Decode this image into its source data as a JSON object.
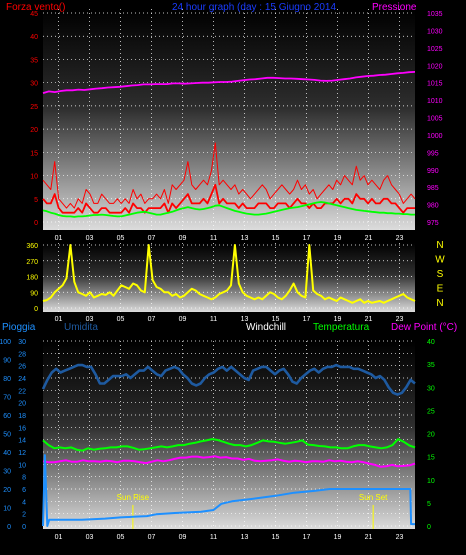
{
  "colors": {
    "wind": "#ff0000",
    "gust": "#ff0000",
    "avg_wind": "#00ff00",
    "pressure": "#ff00ff",
    "direction": "#ffff00",
    "humidity": "#1e5aa0",
    "rain": "#1e90ff",
    "temperature": "#00ff00",
    "dew_point": "#ff00ff",
    "sun": "#ffff00",
    "axis_text": "#1e90ff",
    "grid": "#ffffff"
  },
  "chart_data": [
    {
      "type": "line",
      "title": "24 hour graph (day : 15 Giugno 2014",
      "y_left_label": "Forza vento()",
      "y_right_label": "Pressione",
      "x_ticks": [
        "01",
        "03",
        "05",
        "07",
        "09",
        "11",
        "13",
        "15",
        "17",
        "19",
        "21",
        "23"
      ],
      "x_range": [
        0,
        24
      ],
      "y_left_range": [
        0,
        45
      ],
      "y_left_ticks": [
        0,
        5,
        10,
        15,
        20,
        25,
        30,
        35,
        40,
        45
      ],
      "y_right_range": [
        975,
        1035
      ],
      "y_right_ticks": [
        975,
        980,
        985,
        990,
        995,
        1000,
        1005,
        1010,
        1015,
        1020,
        1025,
        1030,
        1035
      ],
      "grid": true,
      "series": [
        {
          "key": "gust",
          "axis": "left",
          "values": [
            9,
            8,
            7,
            13,
            5,
            4,
            3,
            4,
            3,
            5,
            4,
            7,
            6,
            4,
            4,
            6,
            5,
            4,
            4,
            5,
            4,
            5,
            4,
            7,
            5,
            6,
            4,
            5,
            5,
            6,
            5,
            7,
            4,
            8,
            7,
            8,
            9,
            13,
            8,
            7,
            8,
            9,
            8,
            11,
            17,
            8,
            9,
            8,
            7,
            8,
            6,
            7,
            6,
            5,
            6,
            7,
            8,
            7,
            5,
            6,
            7,
            8,
            7,
            6,
            7,
            9,
            7,
            8,
            6,
            7,
            5,
            6,
            7,
            8,
            7,
            9,
            8,
            10,
            9,
            8,
            12,
            9,
            10,
            8,
            9,
            8,
            7,
            9,
            10,
            8,
            7,
            6,
            4,
            5,
            6,
            5
          ]
        },
        {
          "key": "wind",
          "axis": "left",
          "values": [
            5,
            4,
            4,
            6,
            3,
            2,
            2,
            2,
            2,
            3,
            2,
            4,
            3,
            2,
            2,
            3,
            3,
            2,
            2,
            2,
            2,
            3,
            2,
            4,
            3,
            3,
            2,
            3,
            3,
            3,
            3,
            4,
            2,
            4,
            3,
            4,
            5,
            6,
            4,
            4,
            4,
            5,
            4,
            6,
            8,
            4,
            5,
            4,
            4,
            4,
            3,
            4,
            3,
            3,
            3,
            4,
            4,
            4,
            3,
            3,
            4,
            4,
            4,
            3,
            4,
            5,
            4,
            4,
            3,
            4,
            3,
            3,
            4,
            4,
            4,
            5,
            4,
            5,
            5,
            4,
            6,
            5,
            5,
            4,
            5,
            4,
            4,
            5,
            5,
            4,
            4,
            3,
            2,
            3,
            3,
            3
          ]
        },
        {
          "key": "avg_wind",
          "axis": "left",
          "values": [
            2.5,
            2.3,
            2.0,
            1.8,
            1.5,
            1.3,
            1.2,
            1.2,
            1.1,
            1.2,
            1.2,
            1.3,
            1.4,
            1.5,
            1.5,
            1.6,
            1.5,
            1.4,
            1.3,
            1.2,
            1.2,
            1.4,
            1.6,
            1.8,
            2.0,
            2.1,
            2.2,
            2.0,
            1.8,
            1.6,
            1.6,
            1.8,
            2.0,
            2.2,
            2.5,
            2.8,
            3.0,
            3.2,
            3.0,
            2.8,
            2.7,
            2.8,
            3.0,
            3.2,
            3.5,
            3.6,
            3.3,
            3.0,
            2.7,
            2.4,
            2.2,
            2.0,
            1.8,
            1.7,
            1.6,
            1.6,
            1.7,
            1.8,
            2.0,
            2.2,
            2.4,
            2.6,
            2.8,
            3.0,
            3.1,
            3.2,
            3.4,
            3.6,
            3.8,
            4.0,
            4.2,
            4.3,
            4.2,
            4.0,
            3.8,
            3.6,
            3.4,
            3.2,
            3.0,
            2.8,
            2.6,
            2.5,
            2.4,
            2.3,
            2.2,
            2.1,
            2.0,
            2.0,
            1.9,
            1.9,
            1.8,
            1.8,
            1.7,
            1.7,
            1.6,
            1.6
          ]
        },
        {
          "key": "pressure",
          "axis": "right",
          "values": [
            1012.0,
            1012.5,
            1012.3,
            1012.6,
            1012.8,
            1012.8,
            1013.0,
            1012.9,
            1013.1,
            1013.3,
            1013.4,
            1013.6,
            1013.7,
            1013.8,
            1014.0,
            1014.2,
            1014.3,
            1014.5,
            1014.5,
            1014.6,
            1014.6,
            1014.6,
            1014.8,
            1014.8,
            1014.7,
            1014.8,
            1014.9,
            1015.0,
            1015.0,
            1015.1,
            1015.2,
            1015.2,
            1015.3,
            1015.5,
            1015.7,
            1015.9,
            1016.0,
            1016.2,
            1016.4,
            1016.4,
            1016.3,
            1016.2,
            1016.2,
            1016.1,
            1016.0,
            1015.9,
            1015.8,
            1015.6,
            1015.5,
            1015.6,
            1015.8,
            1016.0,
            1016.2,
            1016.5,
            1016.7,
            1016.9,
            1017.0,
            1017.2,
            1017.3,
            1017.5,
            1017.7,
            1017.8,
            1018.0,
            1018.1
          ]
        }
      ]
    },
    {
      "type": "line",
      "y_left_ticks": [
        0,
        90,
        180,
        270,
        360
      ],
      "y_range": [
        0,
        360
      ],
      "y_right_labels": [
        "N",
        "W",
        "S",
        "E",
        "N"
      ],
      "x_ticks": [
        "01",
        "03",
        "05",
        "07",
        "09",
        "11",
        "13",
        "15",
        "17",
        "19",
        "21",
        "23"
      ],
      "x_range": [
        0,
        24
      ],
      "grid": true,
      "series": [
        {
          "key": "direction",
          "values": [
            40,
            45,
            60,
            90,
            110,
            130,
            170,
            360,
            150,
            90,
            80,
            70,
            90,
            60,
            70,
            80,
            75,
            90,
            70,
            100,
            130,
            120,
            110,
            140,
            130,
            100,
            90,
            360,
            160,
            120,
            110,
            90,
            90,
            70,
            80,
            60,
            70,
            90,
            110,
            100,
            80,
            70,
            60,
            50,
            60,
            80,
            90,
            100,
            130,
            360,
            140,
            90,
            70,
            60,
            50,
            60,
            50,
            70,
            90,
            80,
            60,
            50,
            70,
            100,
            140,
            90,
            70,
            60,
            360,
            100,
            80,
            70,
            50,
            60,
            50,
            40,
            60,
            50,
            40,
            30,
            40,
            50,
            30,
            40,
            30,
            35,
            40,
            30,
            40,
            50,
            60,
            70,
            80,
            60,
            50,
            40
          ]
        }
      ]
    },
    {
      "type": "line",
      "labels": {
        "rain": "Pioggia",
        "humidity": "Umidita",
        "windchill": "Windchill",
        "temperature": "Temperatura",
        "dew_point": "Dew Point (°C)"
      },
      "x_ticks": [
        "01",
        "03",
        "05",
        "07",
        "09",
        "11",
        "13",
        "15",
        "17",
        "19",
        "21",
        "23"
      ],
      "x_range": [
        0,
        24
      ],
      "y_rain_ticks": [
        0,
        2,
        4,
        6,
        8,
        10,
        12,
        14,
        16,
        18,
        20,
        22,
        24,
        26,
        28,
        30
      ],
      "y_rain_range": [
        0,
        30
      ],
      "y_humidity_ticks": [
        0,
        10,
        20,
        30,
        40,
        50,
        60,
        70,
        80,
        90,
        100
      ],
      "y_humidity_range": [
        0,
        100
      ],
      "y_temp_ticks": [
        0,
        5,
        10,
        15,
        20,
        25,
        30,
        35,
        40
      ],
      "y_temp_range": [
        0,
        40
      ],
      "grid": true,
      "annotations": [
        {
          "key": "sunrise",
          "label": "Sun Rise",
          "x": 5.8
        },
        {
          "key": "sunset",
          "label": "Sun Set",
          "x": 21.3
        }
      ],
      "series": [
        {
          "key": "humidity",
          "axis": "humidity",
          "values": [
            74,
            79,
            83,
            85,
            83,
            84,
            85,
            86,
            87,
            87,
            86,
            86,
            82,
            77,
            77,
            79,
            81,
            81,
            81,
            82,
            80,
            82,
            84,
            84,
            86,
            84,
            82,
            81,
            84,
            85,
            86,
            85,
            82,
            80,
            77,
            76,
            77,
            80,
            82,
            83,
            85,
            86,
            84,
            86,
            84,
            82,
            80,
            79,
            84,
            85,
            86,
            86,
            84,
            82,
            84,
            85,
            82,
            78,
            77,
            80,
            82,
            84,
            85,
            83,
            85,
            86,
            86,
            87,
            86,
            86,
            86,
            85,
            85,
            84,
            83,
            82,
            80,
            81,
            79,
            75,
            72,
            71,
            72,
            75,
            79,
            77
          ]
        },
        {
          "key": "temperature",
          "axis": "temp",
          "values": [
            18.5,
            17.5,
            16.8,
            17.0,
            16.8,
            17.0,
            16.5,
            16.3,
            16.8,
            16.5,
            16.7,
            16.8,
            17.0,
            17.0,
            17.2,
            17.2,
            16.9,
            16.5,
            16.6,
            16.8,
            17.0,
            17.2,
            17.0,
            17.2,
            17.5,
            17.5,
            17.8,
            18.0,
            18.3,
            18.5,
            18.8,
            18.6,
            18.2,
            17.8,
            17.5,
            17.5,
            17.2,
            17.5,
            18.0,
            18.5,
            18.3,
            18.2,
            18.0,
            17.8,
            18.0,
            18.2,
            18.5,
            17.6,
            17.5,
            17.3,
            17.2,
            17.0,
            17.0,
            16.8,
            16.8,
            17.2,
            17.5,
            17.5,
            17.2,
            17.0,
            16.8,
            17.0,
            17.5,
            18.8,
            18.2,
            17.4,
            17.0
          ]
        },
        {
          "key": "dew_point",
          "axis": "temp",
          "values": [
            14.0,
            13.8,
            13.8,
            14.0,
            14.2,
            13.9,
            13.9,
            14.2,
            14.0,
            14.0,
            13.9,
            14.1,
            14.0,
            13.8,
            14.1,
            14.1,
            14.0,
            13.8,
            13.6,
            13.9,
            14.2,
            14.0,
            14.2,
            14.5,
            14.8,
            14.8,
            15.0,
            15.0,
            14.8,
            14.9,
            15.1,
            14.8,
            14.9,
            14.6,
            14.6,
            14.3,
            14.5,
            14.1,
            14.0,
            14.1,
            14.2,
            14.4,
            14.1,
            13.9,
            14.1,
            14.0,
            13.8,
            14.0,
            14.0,
            13.9,
            14.2,
            14.0,
            14.1,
            13.9,
            13.8,
            14.0,
            13.8,
            13.5,
            13.2,
            12.8,
            12.9,
            13.2,
            12.9,
            13.0,
            13.1,
            13.5
          ]
        },
        {
          "key": "rain",
          "axis": "rain",
          "points": [
            [
              0,
              0
            ],
            [
              0.12,
              11.5
            ],
            [
              0.28,
              0
            ],
            [
              0.4,
              1.0
            ],
            [
              2.5,
              1.0
            ],
            [
              4.0,
              1.2
            ],
            [
              5.0,
              1.4
            ],
            [
              5.8,
              1.5
            ],
            [
              6.7,
              1.6
            ],
            [
              7.3,
              1.9
            ],
            [
              8.5,
              2.1
            ],
            [
              10.2,
              2.3
            ],
            [
              11.0,
              2.6
            ],
            [
              11.5,
              3.6
            ],
            [
              12.2,
              4.0
            ],
            [
              13.5,
              4.4
            ],
            [
              15.0,
              4.9
            ],
            [
              16.2,
              5.4
            ],
            [
              17.5,
              5.7
            ],
            [
              18.5,
              6.0
            ],
            [
              21.0,
              6.0
            ],
            [
              23.7,
              6.0
            ],
            [
              23.75,
              0.3
            ],
            [
              24,
              0.3
            ]
          ]
        }
      ]
    }
  ]
}
